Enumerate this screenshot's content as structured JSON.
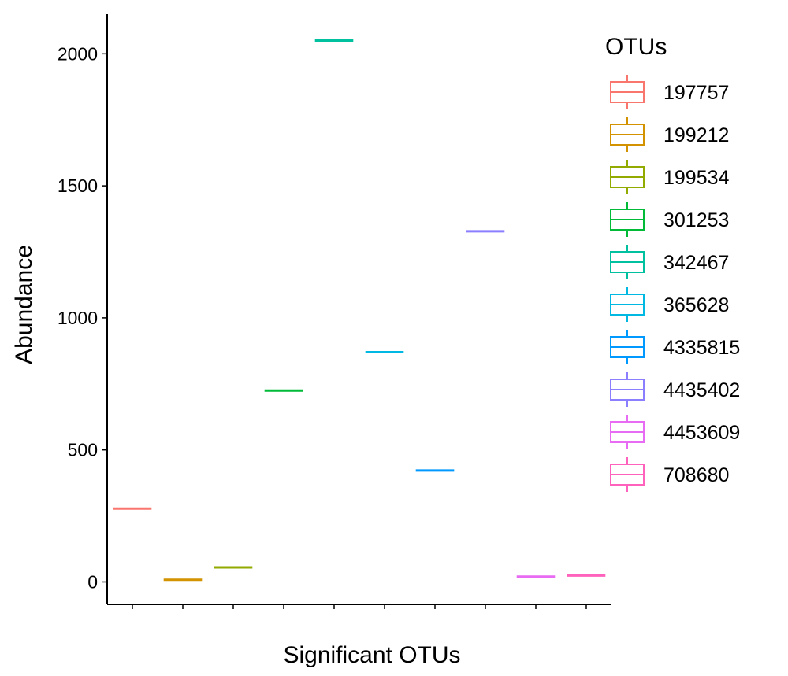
{
  "chart_data": {
    "type": "box",
    "xlabel": "Significant OTUs",
    "ylabel": "Abundance",
    "yticks": [
      0,
      500,
      1000,
      1500,
      2000
    ],
    "ylim": [
      -85,
      2150
    ],
    "grid": false,
    "legend": {
      "title": "OTUs",
      "position": "right"
    },
    "series": [
      {
        "name": "197757",
        "value": 278,
        "color": "#F8766D"
      },
      {
        "name": "199212",
        "value": 8,
        "color": "#D39200"
      },
      {
        "name": "199534",
        "value": 55,
        "color": "#93AA00"
      },
      {
        "name": "301253",
        "value": 725,
        "color": "#00BA38"
      },
      {
        "name": "342467",
        "value": 2050,
        "color": "#00C19F"
      },
      {
        "name": "365628",
        "value": 870,
        "color": "#00B9E3"
      },
      {
        "name": "4335815",
        "value": 422,
        "color": "#0099FF"
      },
      {
        "name": "4435402",
        "value": 1328,
        "color": "#8B7FFF"
      },
      {
        "name": "4453609",
        "value": 20,
        "color": "#E76BF3"
      },
      {
        "name": "708680",
        "value": 24,
        "color": "#FF62BC"
      }
    ]
  }
}
